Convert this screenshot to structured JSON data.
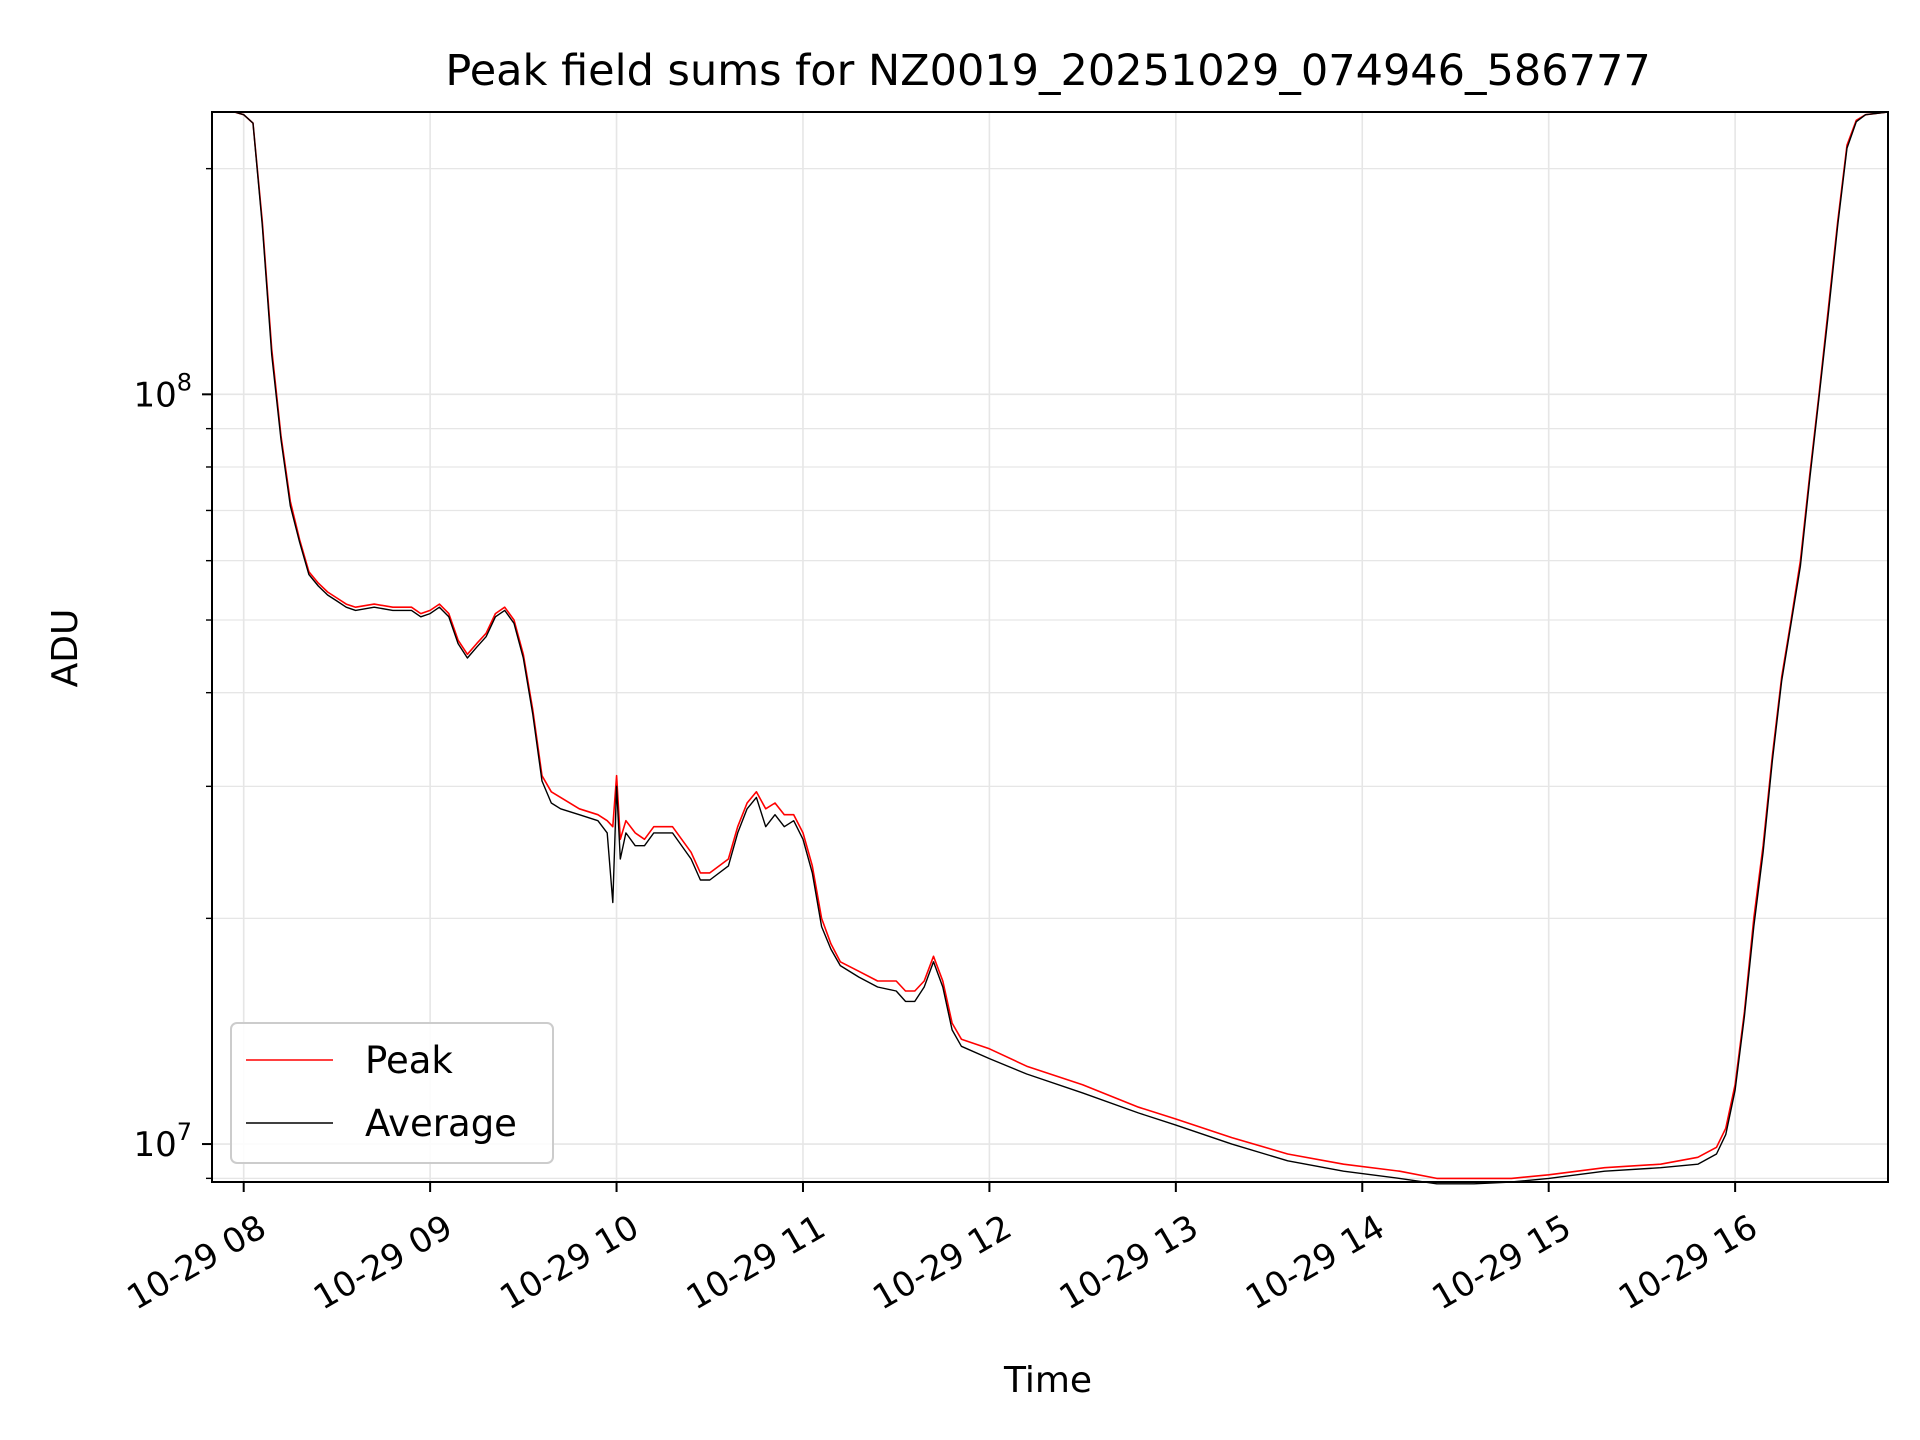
{
  "chart_data": {
    "type": "line",
    "title": "Peak field sums for NZ0019_20251029_074946_586777",
    "xlabel": "Time",
    "ylabel": "ADU",
    "yscale": "log",
    "xlim": [
      7.83,
      16.82
    ],
    "ylim": [
      8900000,
      238000000
    ],
    "x_ticks": [
      8,
      9,
      10,
      11,
      12,
      13,
      14,
      15,
      16
    ],
    "x_tick_labels": [
      "10-29 08",
      "10-29 09",
      "10-29 10",
      "10-29 11",
      "10-29 12",
      "10-29 13",
      "10-29 14",
      "10-29 15",
      "10-29 16"
    ],
    "y_major_ticks": [
      10000000,
      100000000
    ],
    "y_tick_base": "10",
    "y_tick_exponents": [
      "7",
      "8"
    ],
    "grid": true,
    "legend_position": "lower-left",
    "colors": {
      "peak": "#ff0000",
      "average": "#000000",
      "grid": "#e6e6e6"
    },
    "series": [
      {
        "name": "Peak",
        "x": [
          7.83,
          7.95,
          8.0,
          8.05,
          8.1,
          8.15,
          8.2,
          8.25,
          8.3,
          8.35,
          8.4,
          8.45,
          8.5,
          8.55,
          8.6,
          8.7,
          8.8,
          8.9,
          8.95,
          9.0,
          9.05,
          9.1,
          9.15,
          9.2,
          9.25,
          9.3,
          9.35,
          9.4,
          9.45,
          9.5,
          9.55,
          9.6,
          9.65,
          9.7,
          9.8,
          9.9,
          9.95,
          9.98,
          10.0,
          10.02,
          10.05,
          10.1,
          10.15,
          10.2,
          10.3,
          10.4,
          10.45,
          10.5,
          10.6,
          10.65,
          10.7,
          10.75,
          10.8,
          10.85,
          10.9,
          10.95,
          11.0,
          11.05,
          11.1,
          11.15,
          11.2,
          11.3,
          11.4,
          11.5,
          11.55,
          11.6,
          11.65,
          11.7,
          11.75,
          11.8,
          11.85,
          12.0,
          12.2,
          12.5,
          12.8,
          13.0,
          13.3,
          13.6,
          13.9,
          14.2,
          14.4,
          14.6,
          14.8,
          15.0,
          15.3,
          15.6,
          15.8,
          15.9,
          15.95,
          16.0,
          16.05,
          16.1,
          16.15,
          16.2,
          16.25,
          16.3,
          16.35,
          16.4,
          16.45,
          16.5,
          16.55,
          16.6,
          16.65,
          16.7,
          16.82
        ],
        "y": [
          238000000,
          238000000,
          236000000,
          230000000,
          170000000,
          115000000,
          88000000,
          72000000,
          64000000,
          58000000,
          56000000,
          54500000,
          53500000,
          52500000,
          52000000,
          52500000,
          52000000,
          52000000,
          51000000,
          51500000,
          52500000,
          51000000,
          47000000,
          45000000,
          46500000,
          48000000,
          51000000,
          52000000,
          50000000,
          45000000,
          38000000,
          31000000,
          29500000,
          29000000,
          28000000,
          27500000,
          27000000,
          26500000,
          31000000,
          25500000,
          27000000,
          26000000,
          25500000,
          26500000,
          26500000,
          24500000,
          23000000,
          23000000,
          24000000,
          26500000,
          28500000,
          29500000,
          28000000,
          28500000,
          27500000,
          27500000,
          26000000,
          23500000,
          20000000,
          18500000,
          17500000,
          17000000,
          16500000,
          16500000,
          16000000,
          16000000,
          16500000,
          17800000,
          16500000,
          14500000,
          13800000,
          13400000,
          12700000,
          12000000,
          11200000,
          10800000,
          10200000,
          9700000,
          9400000,
          9200000,
          9000000,
          9000000,
          9000000,
          9100000,
          9300000,
          9400000,
          9600000,
          9900000,
          10500000,
          12000000,
          15000000,
          20000000,
          25000000,
          33000000,
          42000000,
          50000000,
          60000000,
          78000000,
          100000000,
          130000000,
          170000000,
          215000000,
          232000000,
          236000000,
          238000000
        ]
      },
      {
        "name": "Average",
        "x": [
          7.83,
          7.95,
          8.0,
          8.05,
          8.1,
          8.15,
          8.2,
          8.25,
          8.3,
          8.35,
          8.4,
          8.45,
          8.5,
          8.55,
          8.6,
          8.7,
          8.8,
          8.9,
          8.95,
          9.0,
          9.05,
          9.1,
          9.15,
          9.2,
          9.25,
          9.3,
          9.35,
          9.4,
          9.45,
          9.5,
          9.55,
          9.6,
          9.65,
          9.7,
          9.8,
          9.9,
          9.95,
          9.98,
          10.0,
          10.02,
          10.05,
          10.1,
          10.15,
          10.2,
          10.3,
          10.4,
          10.45,
          10.5,
          10.6,
          10.65,
          10.7,
          10.75,
          10.8,
          10.85,
          10.9,
          10.95,
          11.0,
          11.05,
          11.1,
          11.15,
          11.2,
          11.3,
          11.4,
          11.5,
          11.55,
          11.6,
          11.65,
          11.7,
          11.75,
          11.8,
          11.85,
          12.0,
          12.2,
          12.5,
          12.8,
          13.0,
          13.3,
          13.6,
          13.9,
          14.2,
          14.4,
          14.6,
          14.8,
          15.0,
          15.3,
          15.6,
          15.8,
          15.9,
          15.95,
          16.0,
          16.05,
          16.1,
          16.15,
          16.2,
          16.25,
          16.3,
          16.35,
          16.4,
          16.45,
          16.5,
          16.55,
          16.6,
          16.65,
          16.7,
          16.82
        ],
        "y": [
          238000000,
          238000000,
          236000000,
          230000000,
          168000000,
          113000000,
          87000000,
          71000000,
          63500000,
          57500000,
          55500000,
          54000000,
          53000000,
          52000000,
          51500000,
          52000000,
          51500000,
          51500000,
          50500000,
          51000000,
          52000000,
          50500000,
          46500000,
          44500000,
          46000000,
          47500000,
          50500000,
          51500000,
          49500000,
          44500000,
          37500000,
          30500000,
          28500000,
          28000000,
          27500000,
          27000000,
          26000000,
          21000000,
          30000000,
          24000000,
          26000000,
          25000000,
          25000000,
          26000000,
          26000000,
          24000000,
          22500000,
          22500000,
          23500000,
          26000000,
          28000000,
          29000000,
          26500000,
          27500000,
          26500000,
          27000000,
          25500000,
          23000000,
          19500000,
          18200000,
          17300000,
          16700000,
          16200000,
          16000000,
          15500000,
          15500000,
          16200000,
          17500000,
          16200000,
          14200000,
          13500000,
          13000000,
          12400000,
          11700000,
          11000000,
          10600000,
          10000000,
          9500000,
          9200000,
          9000000,
          8850000,
          8850000,
          8900000,
          9000000,
          9200000,
          9300000,
          9400000,
          9700000,
          10300000,
          11800000,
          14800000,
          19500000,
          24500000,
          32500000,
          41500000,
          49500000,
          59000000,
          77000000,
          99000000,
          128000000,
          168000000,
          213000000,
          231000000,
          236000000,
          238000000
        ]
      }
    ]
  }
}
